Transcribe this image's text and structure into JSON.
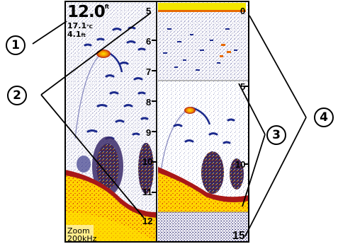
{
  "left_panel": {
    "depth": "12.0",
    "depth_unit": "ft",
    "temperature": "17.1",
    "temperature_unit": "°C",
    "speed": "4.1",
    "speed_unit": "ft",
    "mode_label": "Zoom",
    "frequency": "200kHz",
    "scale_labels": [
      "5",
      "6",
      "7",
      "8",
      "9",
      "10",
      "11",
      "12"
    ]
  },
  "right_panel": {
    "top_scale_labels": [
      "0",
      "5"
    ],
    "bottom_scale_labels": [
      "10",
      "15"
    ]
  },
  "callouts": [
    "1",
    "2",
    "3",
    "4"
  ],
  "colors": {
    "surface_bar": "#f3e600",
    "bottom_yellow": "#ffd800",
    "bottom_orange": "#e86a00",
    "bottom_red": "#a81818",
    "echo_blue": "#1c2a8c",
    "arch_orange": "#f08a00"
  }
}
